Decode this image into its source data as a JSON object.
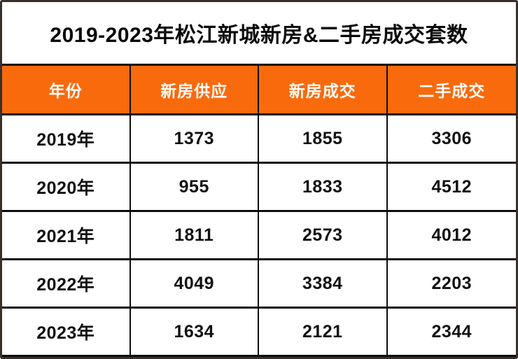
{
  "title": "2019-2023年松江新城新房&二手房成交套数",
  "table": {
    "headers": [
      "年份",
      "新房供应",
      "新房成交",
      "二手成交"
    ],
    "rows": [
      [
        "2019年",
        "1373",
        "1855",
        "3306"
      ],
      [
        "2020年",
        "955",
        "1833",
        "4512"
      ],
      [
        "2021年",
        "1811",
        "2573",
        "4012"
      ],
      [
        "2022年",
        "4049",
        "3384",
        "2203"
      ],
      [
        "2023年",
        "1634",
        "2121",
        "2344"
      ]
    ]
  },
  "colors": {
    "header_orange": "#f96a0d",
    "grid_black": "#0d0d0d",
    "frame_brown": "#38302a",
    "header_text": "#ffffff",
    "body_text": "#111111"
  },
  "chart_data": {
    "type": "table",
    "title": "2019-2023年松江新城新房&二手房成交套数",
    "columns": [
      "年份",
      "新房供应",
      "新房成交",
      "二手成交"
    ],
    "rows": [
      [
        "2019年",
        1373,
        1855,
        3306
      ],
      [
        "2020年",
        955,
        1833,
        4512
      ],
      [
        "2021年",
        1811,
        2573,
        4012
      ],
      [
        "2022年",
        4049,
        3384,
        2203
      ],
      [
        "2023年",
        1634,
        2121,
        2344
      ]
    ],
    "series": [
      {
        "name": "新房供应",
        "values": [
          1373,
          955,
          1811,
          4049,
          1634
        ]
      },
      {
        "name": "新房成交",
        "values": [
          1855,
          1833,
          2573,
          3384,
          2121
        ]
      },
      {
        "name": "二手成交",
        "values": [
          3306,
          4512,
          4012,
          2203,
          2344
        ]
      }
    ],
    "categories": [
      "2019年",
      "2020年",
      "2021年",
      "2022年",
      "2023年"
    ]
  }
}
